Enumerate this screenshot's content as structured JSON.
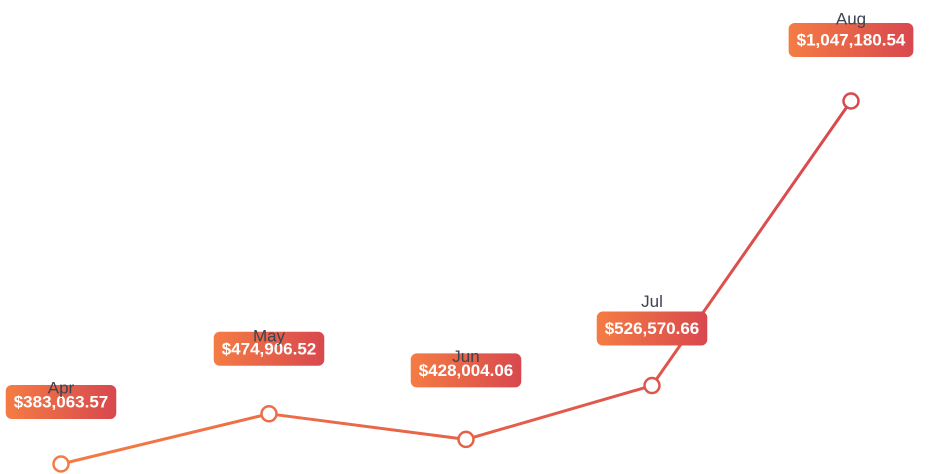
{
  "chart_data": {
    "type": "line",
    "categories": [
      "Apr",
      "May",
      "Jun",
      "Jul",
      "Aug"
    ],
    "values": [
      383063.57,
      474906.52,
      428004.06,
      526570.66,
      1047180.54
    ],
    "value_labels": [
      "$383,063.57",
      "$474,906.52",
      "$428,004.06",
      "$526,570.66",
      "$1,047,180.54"
    ],
    "title": "",
    "xlabel": "",
    "ylabel": "",
    "ylim": [
      383063.57,
      1047180.54
    ],
    "grid": false,
    "legend": "none"
  },
  "colors": {
    "gradient_start": "#f47c44",
    "gradient_end": "#d8484e",
    "marker_fill": "#ffffff",
    "month_text": "#3b4350",
    "value_text": "#ffffff"
  }
}
